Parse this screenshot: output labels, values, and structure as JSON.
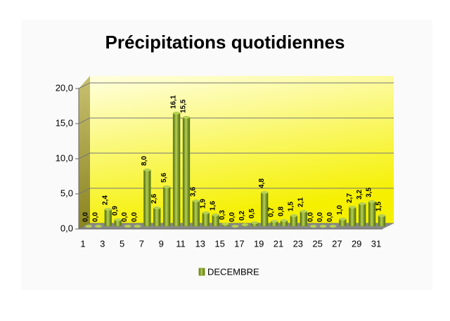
{
  "chart_data": {
    "type": "bar",
    "title": "Précipitations quotidiennes",
    "categories": [
      "1",
      null,
      "3",
      null,
      "5",
      null,
      "7",
      null,
      "9",
      null,
      "11",
      null,
      "13",
      null,
      "15",
      null,
      "17",
      null,
      "19",
      null,
      "21",
      null,
      "23",
      null,
      "25",
      null,
      "27",
      null,
      "29",
      null,
      "31"
    ],
    "series": [
      {
        "name": "DECEMBRE",
        "color": "#7f9f1f",
        "values": [
          0.0,
          0.0,
          2.4,
          0.9,
          0.0,
          0.0,
          8.0,
          2.6,
          5.6,
          16.1,
          15.5,
          3.6,
          1.9,
          1.6,
          0.3,
          0.0,
          0.2,
          0.5,
          4.8,
          0.7,
          0.8,
          1.5,
          2.1,
          0.0,
          0.0,
          0.0,
          1.0,
          2.7,
          3.2,
          3.5,
          1.5
        ],
        "value_labels": [
          "0,0",
          "0,0",
          "2,4",
          "0,9",
          "0,0",
          "0,0",
          "8,0",
          "2,6",
          "5,6",
          "16,1",
          "15,5",
          "3,6",
          "1,9",
          "1,6",
          "0,3",
          "0,0",
          "0,2",
          "0,5",
          "4,8",
          "0,7",
          "0,8",
          "1,5",
          "2,1",
          "0,0",
          "0,0",
          "0,0",
          "1,0",
          "2,7",
          "3,2",
          "3,5",
          "1,5"
        ]
      }
    ],
    "ylim": [
      0,
      20
    ],
    "yticks": [
      {
        "value": 0,
        "label": "0,0"
      },
      {
        "value": 5,
        "label": "5,0"
      },
      {
        "value": 10,
        "label": "10,0"
      },
      {
        "value": 15,
        "label": "15,0"
      },
      {
        "value": 20,
        "label": "20,0"
      }
    ],
    "grid": true,
    "legend": "bottom"
  }
}
